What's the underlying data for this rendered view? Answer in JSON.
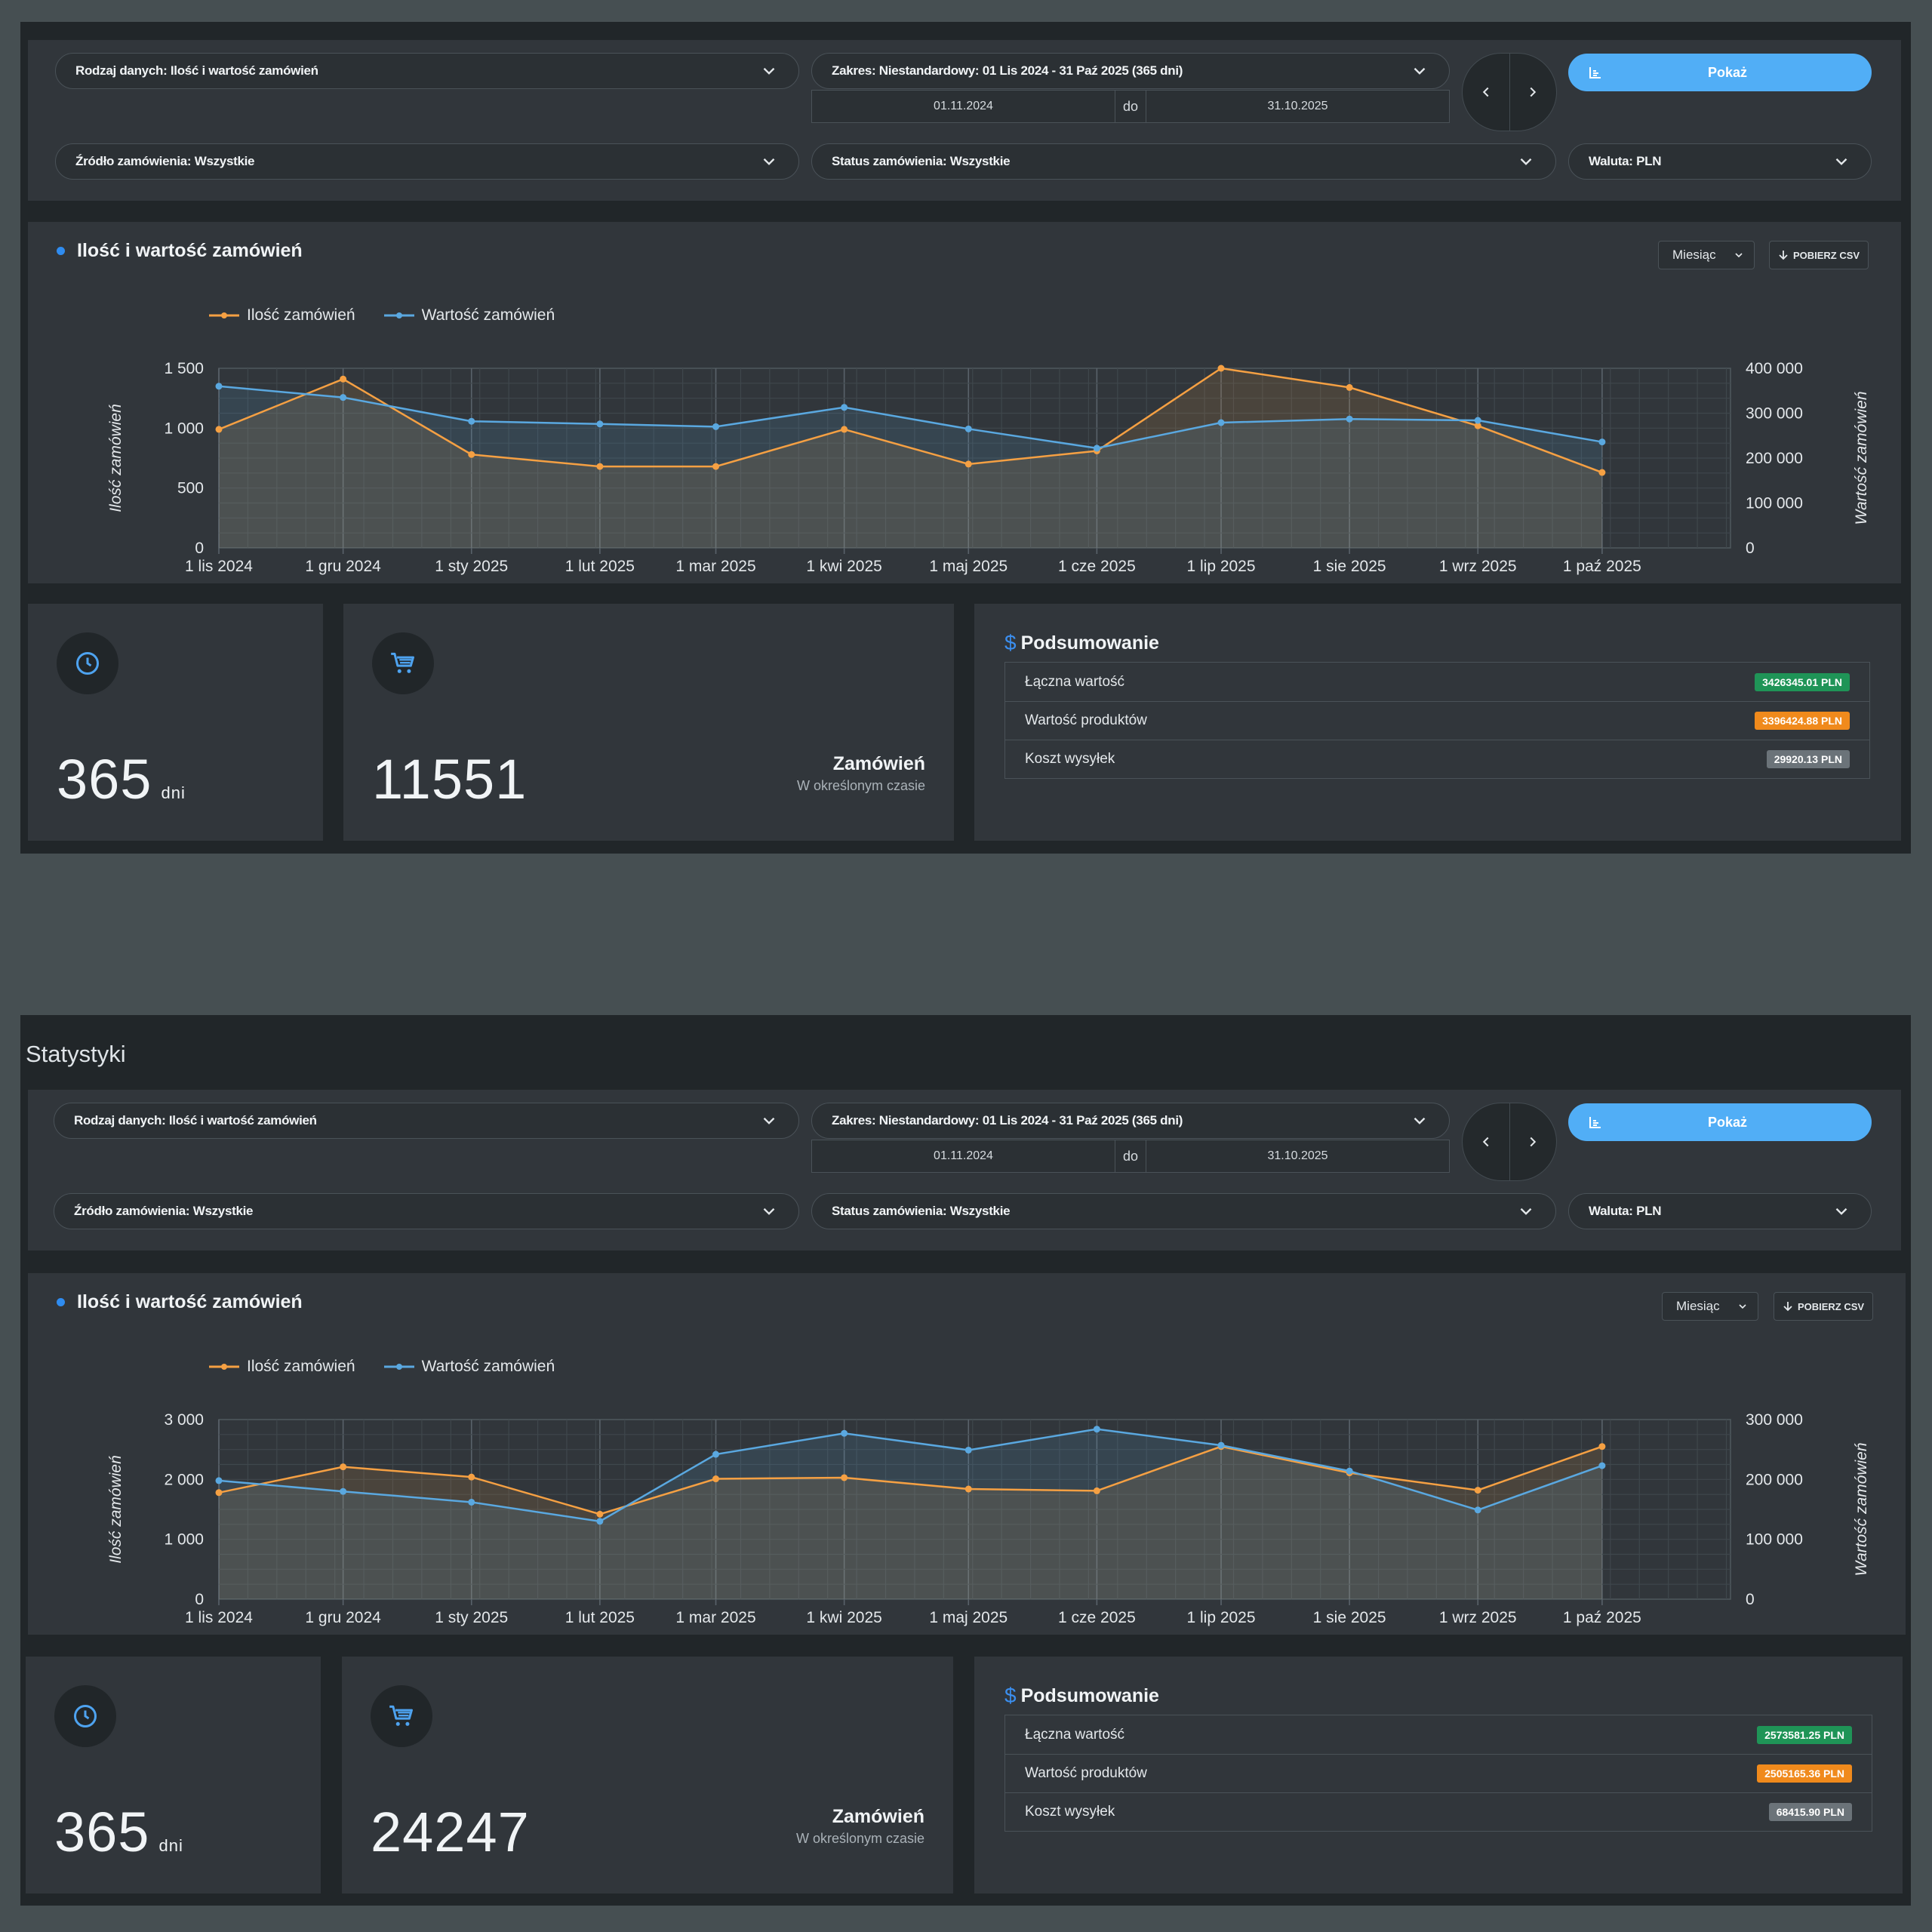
{
  "colors": {
    "orange": "#f5a043",
    "blue": "#5aa8e0",
    "button": "#51aef6",
    "accent": "#2f8cf0"
  },
  "icons": {
    "chevron": "chevron-down-icon",
    "prev": "chevron-left-icon",
    "next": "chevron-right-icon",
    "chart": "bar-chart-icon",
    "download": "arrow-down-icon",
    "clock": "clock-icon",
    "cart": "cart-icon",
    "dollar": "dollar-icon"
  },
  "blocks": [
    {
      "title": "",
      "filters": {
        "data_type": "Rodzaj danych: Ilość i wartość zamówień",
        "range": "Zakres: Niestandardowy: 01 Lis 2024 - 31 Paź 2025 (365 dni)",
        "date_from": "01.11.2024",
        "date_sep": "do",
        "date_to": "31.10.2025",
        "show_label": "Pokaż",
        "source": "Źródło zamówienia: Wszystkie",
        "status": "Status zamówienia: Wszystkie",
        "currency": "Waluta: PLN"
      },
      "chart_header": {
        "title": "Ilość i wartość zamówień",
        "period": "Miesiąc",
        "csv_label": "POBIERZ CSV"
      },
      "stats": {
        "days": "365",
        "days_unit": "dni",
        "orders": "11551",
        "orders_label": "Zamówień",
        "orders_sub": "W określonym czasie"
      },
      "summary": {
        "title": "Podsumowanie",
        "rows": [
          {
            "label": "Łączna wartość",
            "value": "3426345.01 PLN",
            "color": "green"
          },
          {
            "label": "Wartość produktów",
            "value": "3396424.88 PLN",
            "color": "orange"
          },
          {
            "label": "Koszt wysyłek",
            "value": "29920.13 PLN",
            "color": "gray"
          }
        ]
      }
    },
    {
      "title": "Statystyki",
      "filters": {
        "data_type": "Rodzaj danych: Ilość i wartość zamówień",
        "range": "Zakres: Niestandardowy: 01 Lis 2024 - 31 Paź 2025 (365 dni)",
        "date_from": "01.11.2024",
        "date_sep": "do",
        "date_to": "31.10.2025",
        "show_label": "Pokaż",
        "source": "Źródło zamówienia: Wszystkie",
        "status": "Status zamówienia: Wszystkie",
        "currency": "Waluta: PLN"
      },
      "chart_header": {
        "title": "Ilość i wartość zamówień",
        "period": "Miesiąc",
        "csv_label": "POBIERZ CSV"
      },
      "stats": {
        "days": "365",
        "days_unit": "dni",
        "orders": "24247",
        "orders_label": "Zamówień",
        "orders_sub": "W określonym czasie"
      },
      "summary": {
        "title": "Podsumowanie",
        "rows": [
          {
            "label": "Łączna wartość",
            "value": "2573581.25 PLN",
            "color": "green"
          },
          {
            "label": "Wartość produktów",
            "value": "2505165.36 PLN",
            "color": "orange"
          },
          {
            "label": "Koszt wysyłek",
            "value": "68415.90 PLN",
            "color": "gray"
          }
        ]
      }
    }
  ],
  "chart_data": [
    {
      "type": "line",
      "x": [
        "1 lis 2024",
        "1 gru 2024",
        "1 sty 2025",
        "1 lut 2025",
        "1 mar 2025",
        "1 kwi 2025",
        "1 maj 2025",
        "1 cze 2025",
        "1 lip 2025",
        "1 sie 2025",
        "1 wrz 2025",
        "1 paź 2025"
      ],
      "x_days": [
        0,
        30,
        61,
        92,
        120,
        151,
        181,
        212,
        242,
        273,
        304,
        334
      ],
      "series": [
        {
          "name": "Ilość zamówień",
          "axis": "left",
          "color": "#f5a043",
          "values": [
            990,
            1410,
            780,
            680,
            680,
            990,
            700,
            810,
            1500,
            1340,
            1020,
            630
          ]
        },
        {
          "name": "Wartość zamówień",
          "axis": "right",
          "color": "#5aa8e0",
          "values": [
            360000,
            335000,
            282000,
            276000,
            270000,
            313000,
            265000,
            222000,
            279000,
            287000,
            284000,
            236000
          ]
        }
      ],
      "ylabel": "Ilość zamówień",
      "y2label": "Wartość zamówień",
      "ylim": [
        0,
        1500
      ],
      "y2lim": [
        0,
        400000
      ],
      "yticks": [
        0,
        500,
        1000,
        1500
      ],
      "ytick_labels": [
        "0",
        "500",
        "1 000",
        "1 500"
      ],
      "y2ticks": [
        0,
        100000,
        200000,
        300000,
        400000
      ],
      "y2tick_labels": [
        "0",
        "100 000",
        "200 000",
        "300 000",
        "400 000"
      ],
      "legend": "top-left",
      "grid": true
    },
    {
      "type": "line",
      "x": [
        "1 lis 2024",
        "1 gru 2024",
        "1 sty 2025",
        "1 lut 2025",
        "1 mar 2025",
        "1 kwi 2025",
        "1 maj 2025",
        "1 cze 2025",
        "1 lip 2025",
        "1 sie 2025",
        "1 wrz 2025",
        "1 paź 2025"
      ],
      "x_days": [
        0,
        30,
        61,
        92,
        120,
        151,
        181,
        212,
        242,
        273,
        304,
        334
      ],
      "series": [
        {
          "name": "Ilość zamówień",
          "axis": "left",
          "color": "#f5a043",
          "values": [
            1780,
            2210,
            2040,
            1420,
            2010,
            2030,
            1840,
            1810,
            2550,
            2110,
            1820,
            2550
          ]
        },
        {
          "name": "Wartość zamówień",
          "axis": "right",
          "color": "#5aa8e0",
          "values": [
            198000,
            180000,
            162000,
            130000,
            242000,
            277000,
            249000,
            284000,
            257000,
            214000,
            149000,
            223000
          ]
        }
      ],
      "ylabel": "Ilość zamówień",
      "y2label": "Wartość zamówień",
      "ylim": [
        0,
        3000
      ],
      "y2lim": [
        0,
        300000
      ],
      "yticks": [
        0,
        1000,
        2000,
        3000
      ],
      "ytick_labels": [
        "0",
        "1 000",
        "2 000",
        "3 000"
      ],
      "y2ticks": [
        0,
        100000,
        200000,
        300000
      ],
      "y2tick_labels": [
        "0",
        "100 000",
        "200 000",
        "300 000"
      ],
      "legend": "top-left",
      "grid": true
    }
  ]
}
